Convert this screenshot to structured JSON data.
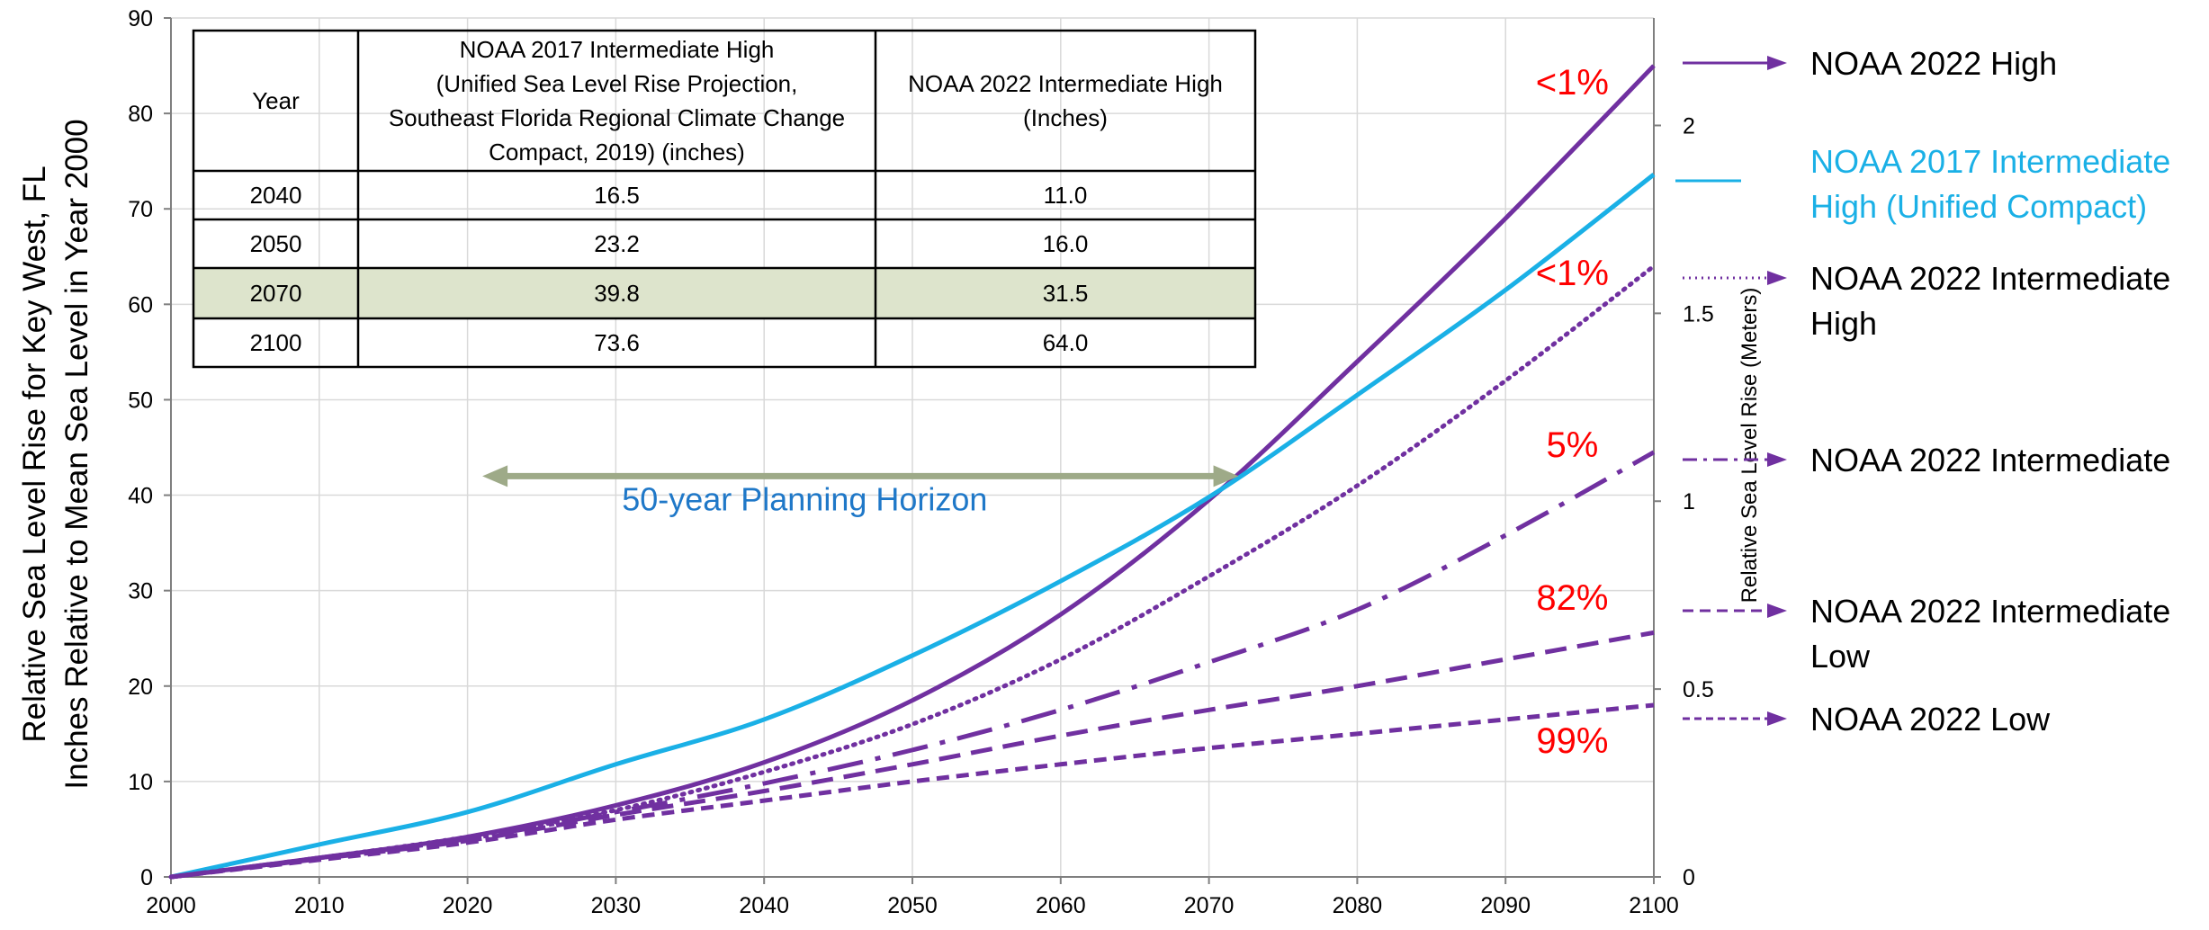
{
  "chart_data": {
    "type": "line",
    "x": [
      2000,
      2010,
      2020,
      2030,
      2040,
      2050,
      2060,
      2070,
      2080,
      2090,
      2100
    ],
    "xlim": [
      2000,
      2100
    ],
    "ylim": [
      0,
      90
    ],
    "y_ticks": [
      "0",
      "10",
      "20",
      "30",
      "40",
      "50",
      "60",
      "70",
      "80",
      "90"
    ],
    "x_ticks": [
      "2000",
      "2010",
      "2020",
      "2030",
      "2040",
      "2050",
      "2060",
      "2070",
      "2080",
      "2090",
      "2100"
    ],
    "ylabel_line1": "Relative Sea Level Rise for Key West, FL",
    "ylabel_line2": "Inches Relative to Mean Sea Level in Year 2000",
    "y2label": "Relative Sea Level Rise (Meters)",
    "y2_ticks": [
      {
        "label": "0",
        "inches": 0
      },
      {
        "label": "0.5",
        "inches": 19.685
      },
      {
        "label": "1",
        "inches": 39.37
      },
      {
        "label": "1.5",
        "inches": 59.055
      },
      {
        "label": "2",
        "inches": 78.74
      }
    ],
    "grid": true,
    "series": [
      {
        "name": "NOAA 2022 High",
        "color": "#7030a0",
        "style": "solid",
        "values": [
          0,
          2.0,
          4.2,
          7.5,
          12.0,
          18.5,
          27.5,
          39.5,
          54.0,
          69.0,
          85.0
        ],
        "probability": "<1%"
      },
      {
        "name": "NOAA 2017 Intermediate High (Unified Compact)",
        "color": "#1ab0e6",
        "style": "solid",
        "values": [
          0,
          3.4,
          6.8,
          11.8,
          16.5,
          23.2,
          31.0,
          39.8,
          50.5,
          61.5,
          73.6
        ]
      },
      {
        "name": "NOAA 2022 Intermediate High",
        "color": "#7030a0",
        "style": "dotted",
        "values": [
          0,
          2.0,
          4.2,
          7.0,
          11.0,
          16.0,
          22.8,
          31.5,
          41.0,
          52.0,
          64.0
        ],
        "probability": "<1%"
      },
      {
        "name": "NOAA 2022 Intermediate",
        "color": "#7030a0",
        "style": "dashdot",
        "values": [
          0,
          2.0,
          4.0,
          6.8,
          9.8,
          13.3,
          17.5,
          22.5,
          28.0,
          35.8,
          44.5
        ],
        "probability": "5%"
      },
      {
        "name": "NOAA 2022 Intermediate Low",
        "color": "#7030a0",
        "style": "dashed",
        "values": [
          0,
          1.9,
          3.8,
          6.5,
          9.0,
          11.8,
          14.8,
          17.5,
          20.0,
          22.8,
          25.6
        ],
        "probability": "82%"
      },
      {
        "name": "NOAA 2022 Low",
        "color": "#7030a0",
        "style": "dashed-short",
        "values": [
          0,
          1.8,
          3.6,
          6.0,
          8.0,
          10.0,
          11.8,
          13.5,
          15.0,
          16.5,
          18.0
        ],
        "probability": "99%"
      }
    ],
    "annotations": {
      "planning_horizon": {
        "label": "50-year Planning Horizon",
        "from": 2021,
        "to": 2072,
        "y": 42
      }
    },
    "table": {
      "headers": [
        "Year",
        [
          "NOAA 2017 Intermediate High",
          "(Unified Sea Level Rise Projection,",
          "Southeast Florida Regional Climate Change",
          "Compact, 2019) (inches)"
        ],
        [
          "NOAA 2022 Intermediate High",
          "(Inches)"
        ]
      ],
      "rows": [
        [
          "2040",
          "16.5",
          "11.0"
        ],
        [
          "2050",
          "23.2",
          "16.0"
        ],
        [
          "2070",
          "39.8",
          "31.5"
        ],
        [
          "2100",
          "73.6",
          "64.0"
        ]
      ],
      "highlight_row": 2,
      "highlight_color": "#dde4cc"
    },
    "legend": [
      {
        "lines": [
          "NOAA 2022 High"
        ],
        "series": 0,
        "color": "#000000"
      },
      {
        "lines": [
          "NOAA 2017 Intermediate",
          "High (Unified Compact)"
        ],
        "series": 1,
        "color": "#1ab0e6"
      },
      {
        "lines": [
          "NOAA 2022 Intermediate",
          "High"
        ],
        "series": 2,
        "color": "#000000"
      },
      {
        "lines": [
          "NOAA 2022 Intermediate"
        ],
        "series": 3,
        "color": "#000000"
      },
      {
        "lines": [
          "NOAA 2022 Intermediate",
          "Low"
        ],
        "series": 4,
        "color": "#000000"
      },
      {
        "lines": [
          "NOAA 2022 Low"
        ],
        "series": 5,
        "color": "#000000"
      }
    ]
  }
}
